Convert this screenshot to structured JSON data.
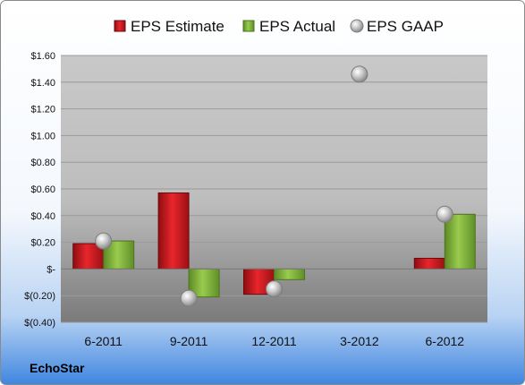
{
  "chart_data": {
    "type": "bar",
    "categories": [
      "6-2011",
      "9-2011",
      "12-2011",
      "3-2012",
      "6-2012"
    ],
    "series": [
      {
        "name": "EPS Estimate",
        "kind": "bar",
        "color": "#d0161c",
        "values": [
          0.19,
          0.57,
          -0.19,
          null,
          0.08
        ]
      },
      {
        "name": "EPS Actual",
        "kind": "bar",
        "color": "#7fb03a",
        "values": [
          0.21,
          -0.21,
          -0.08,
          null,
          0.41
        ]
      },
      {
        "name": "EPS GAAP",
        "kind": "scatter",
        "color": "#b8b8b8",
        "values": [
          0.21,
          -0.22,
          -0.15,
          1.46,
          0.41
        ]
      }
    ],
    "ylim": [
      -0.4,
      1.6
    ],
    "yticks": [
      -0.4,
      -0.2,
      0,
      0.2,
      0.4,
      0.6,
      0.8,
      1.0,
      1.2,
      1.4,
      1.6
    ],
    "ytick_labels": [
      "$(0.40)",
      "$(0.20)",
      "$-",
      "$0.20",
      "$0.40",
      "$0.60",
      "$0.80",
      "$1.00",
      "$1.20",
      "$1.40",
      "$1.60"
    ],
    "grid": true,
    "legend": "top",
    "footer_label": "EchoStar"
  }
}
